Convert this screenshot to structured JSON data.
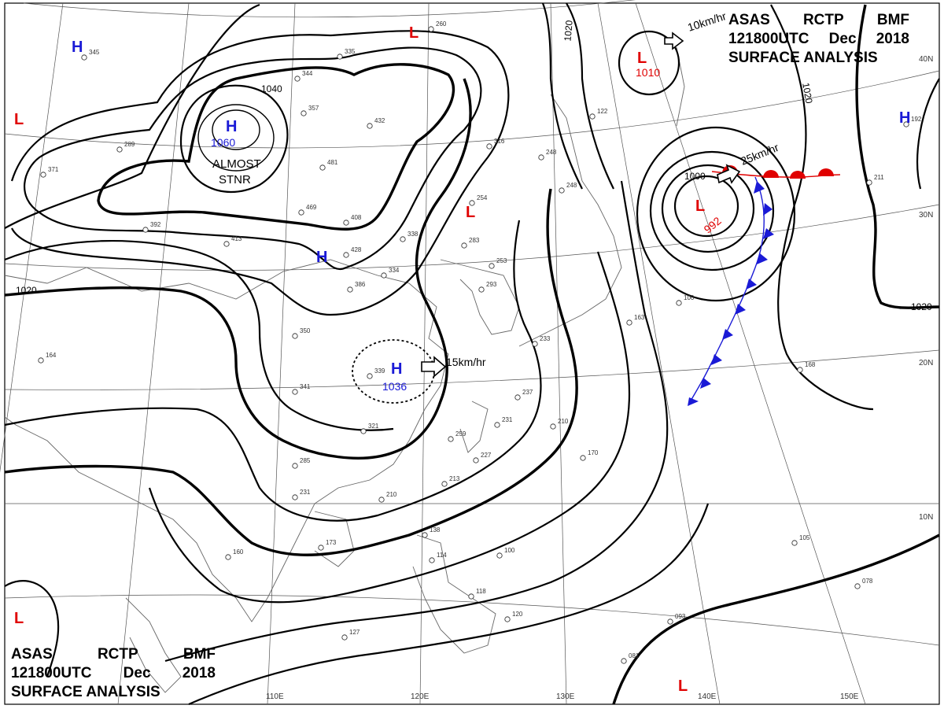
{
  "header": {
    "line1": [
      "ASAS",
      "RCTP",
      "BMF"
    ],
    "line2": [
      "121800UTC",
      "Dec",
      "2018"
    ],
    "line3": "SURFACE ANALYSIS"
  },
  "longitude_labels": [
    "110E",
    "120E",
    "130E",
    "140E",
    "150E"
  ],
  "latitude_labels": [
    "40N",
    "30N",
    "20N",
    "10N"
  ],
  "isobar_labels": [
    "1040",
    "1020",
    "1020",
    "1020",
    "1000"
  ],
  "pressure_centers": [
    {
      "type": "H",
      "value": "1060",
      "note": "ALMOST STNR"
    },
    {
      "type": "H",
      "value": "1036",
      "speed": "15km/hr"
    },
    {
      "type": "H",
      "value": ""
    },
    {
      "type": "H",
      "value": ""
    },
    {
      "type": "H",
      "value": ""
    },
    {
      "type": "L",
      "value": "1010",
      "speed": "10km/hr"
    },
    {
      "type": "L",
      "value": "992",
      "speed": "25km/hr"
    },
    {
      "type": "L",
      "value": ""
    },
    {
      "type": "L",
      "value": ""
    },
    {
      "type": "L",
      "value": ""
    },
    {
      "type": "L",
      "value": ""
    }
  ],
  "colors": {
    "high": "#1a1ad6",
    "low": "#e00000",
    "cold_front": "#1a1ad6",
    "warm_front": "#e00000"
  },
  "station_reports": [
    "344",
    "335",
    "260",
    "357",
    "432",
    "481",
    "469",
    "408",
    "413",
    "428",
    "338",
    "283",
    "334",
    "386",
    "350",
    "339",
    "341",
    "321",
    "285",
    "231",
    "210",
    "259",
    "237",
    "231",
    "210",
    "170",
    "163",
    "100",
    "168",
    "211",
    "192",
    "254",
    "316",
    "248",
    "248",
    "122",
    "345",
    "371",
    "289",
    "392",
    "164",
    "173",
    "160",
    "118",
    "114",
    "138",
    "100",
    "105",
    "078",
    "093",
    "120",
    "081",
    "127",
    "213",
    "227",
    "293",
    "253",
    "233"
  ]
}
